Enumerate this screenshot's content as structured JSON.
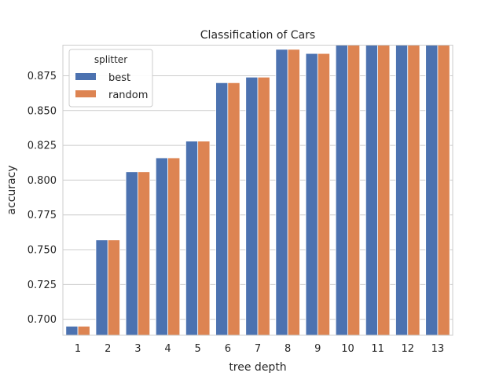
{
  "chart_data": {
    "type": "bar",
    "title": "Classification of Cars",
    "xlabel": "tree depth",
    "ylabel": "accuracy",
    "categories": [
      "1",
      "2",
      "3",
      "4",
      "5",
      "6",
      "7",
      "8",
      "9",
      "10",
      "11",
      "12",
      "13"
    ],
    "series": [
      {
        "name": "best",
        "color": "#4c72b0",
        "values": [
          0.695,
          0.757,
          0.806,
          0.816,
          0.828,
          0.87,
          0.874,
          0.894,
          0.891,
          0.897,
          0.897,
          0.897,
          0.897
        ]
      },
      {
        "name": "random",
        "color": "#dd8452",
        "values": [
          0.695,
          0.757,
          0.806,
          0.816,
          0.828,
          0.87,
          0.874,
          0.894,
          0.891,
          0.897,
          0.897,
          0.897,
          0.897
        ]
      }
    ],
    "ylim": [
      0.6885,
      0.897
    ],
    "yticks": [
      "0.700",
      "0.725",
      "0.750",
      "0.775",
      "0.800",
      "0.825",
      "0.850",
      "0.875"
    ],
    "grid": "horizontal",
    "legend": {
      "title": "splitter",
      "position": "top-left"
    }
  }
}
